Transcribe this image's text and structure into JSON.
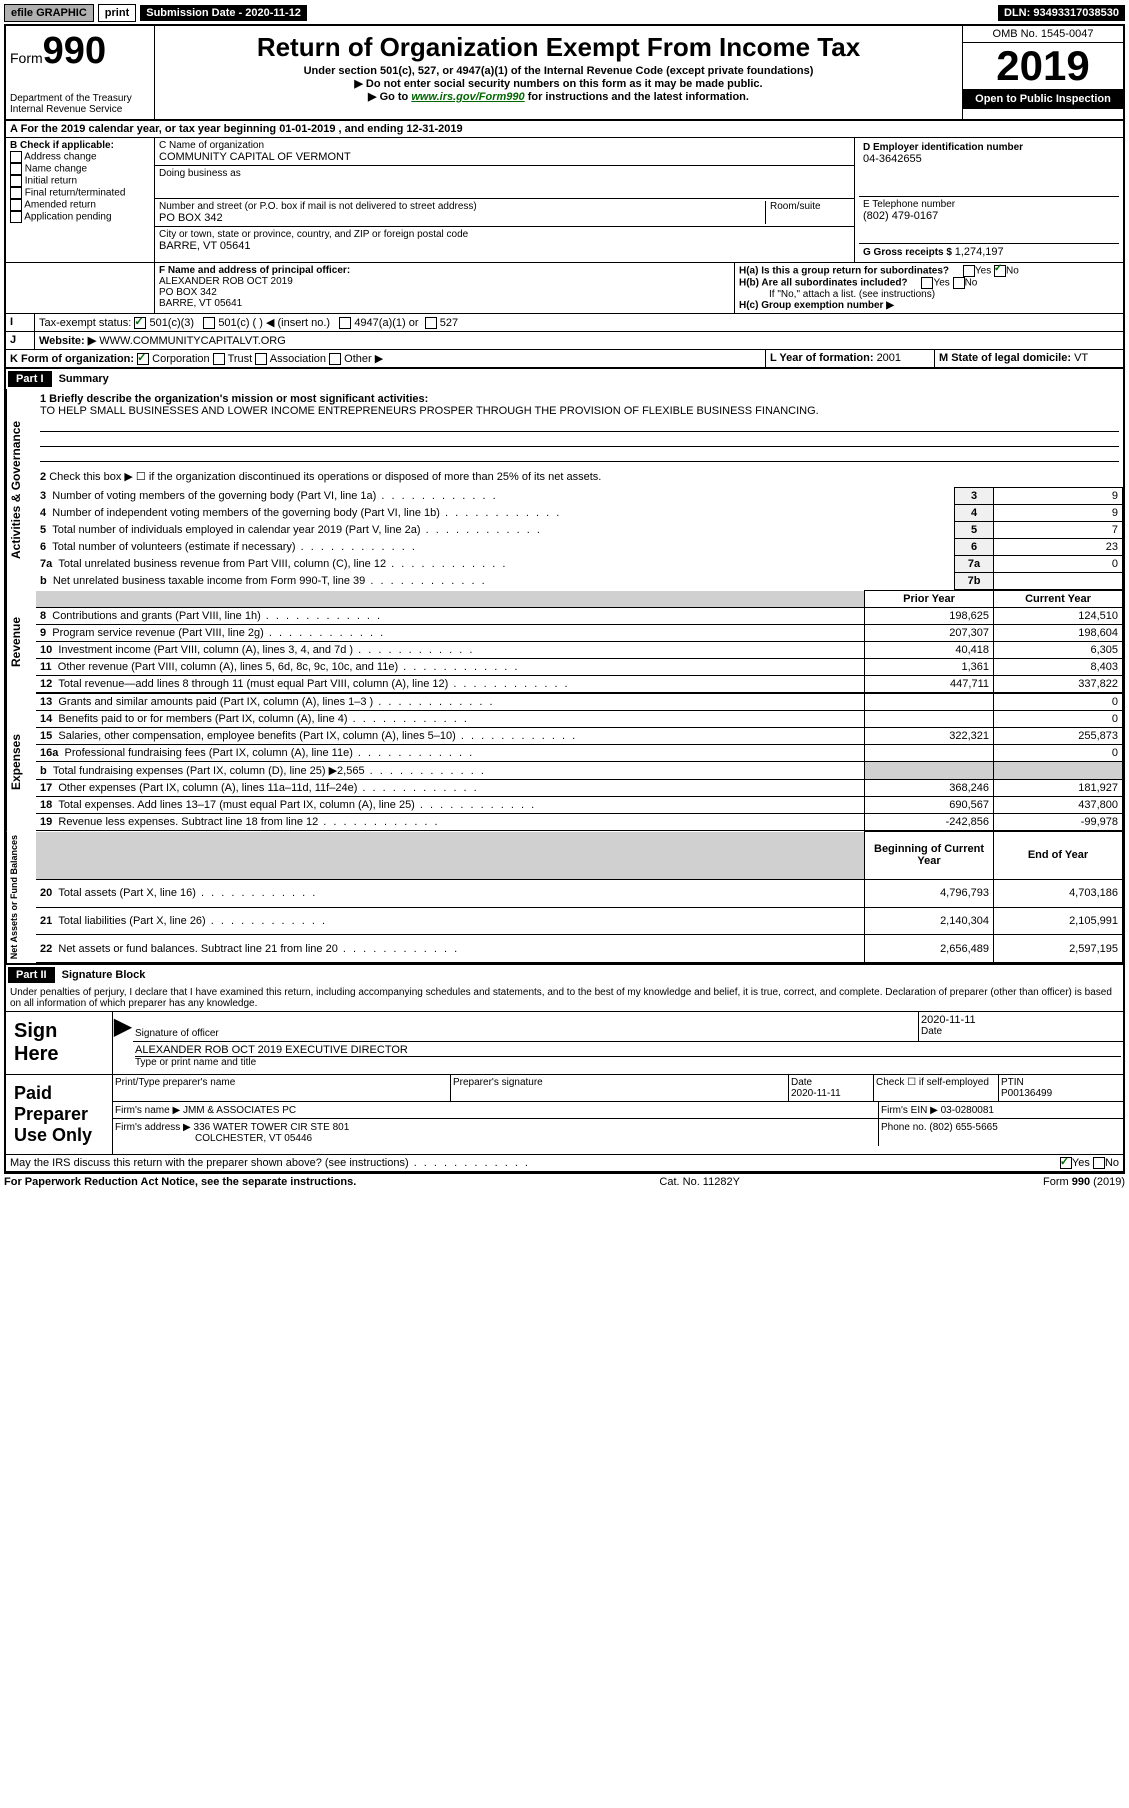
{
  "topbar": {
    "efile": "efile GRAPHIC",
    "print": "print",
    "subdate_label": "Submission Date - 2020-11-12",
    "dln": "DLN: 93493317038530"
  },
  "header": {
    "form_label": "Form",
    "form_num": "990",
    "dept": "Department of the Treasury",
    "irs": "Internal Revenue Service",
    "title": "Return of Organization Exempt From Income Tax",
    "subtitle": "Under section 501(c), 527, or 4947(a)(1) of the Internal Revenue Code (except private foundations)",
    "line1": "▶ Do not enter social security numbers on this form as it may be made public.",
    "line2_pre": "▶ Go to ",
    "line2_link": "www.irs.gov/Form990",
    "line2_post": " for instructions and the latest information.",
    "omb": "OMB No. 1545-0047",
    "year": "2019",
    "inspection": "Open to Public Inspection"
  },
  "A": {
    "text": "For the 2019 calendar year, or tax year beginning 01-01-2019   , and ending 12-31-2019"
  },
  "B": {
    "label": "B Check if applicable:",
    "opts": [
      "Address change",
      "Name change",
      "Initial return",
      "Final return/terminated",
      "Amended return",
      "Application pending"
    ]
  },
  "C": {
    "name_label": "C Name of organization",
    "name": "COMMUNITY CAPITAL OF VERMONT",
    "dba_label": "Doing business as",
    "addr_label": "Number and street (or P.O. box if mail is not delivered to street address)",
    "room_label": "Room/suite",
    "addr": "PO BOX 342",
    "city_label": "City or town, state or province, country, and ZIP or foreign postal code",
    "city": "BARRE, VT  05641"
  },
  "D": {
    "label": "D Employer identification number",
    "value": "04-3642655"
  },
  "E": {
    "label": "E Telephone number",
    "value": "(802) 479-0167"
  },
  "G": {
    "label": "G Gross receipts $ ",
    "value": "1,274,197"
  },
  "F": {
    "label": "F  Name and address of principal officer:",
    "name": "ALEXANDER ROB OCT 2019",
    "addr1": "PO BOX 342",
    "addr2": "BARRE, VT  05641"
  },
  "H": {
    "a_label": "H(a)  Is this a group return for subordinates?",
    "b_label": "H(b)  Are all subordinates included?",
    "b_note": "If \"No,\" attach a list. (see instructions)",
    "c_label": "H(c)  Group exemption number ▶",
    "yes": "Yes",
    "no": "No"
  },
  "I": {
    "label": "Tax-exempt status:",
    "opts": [
      "501(c)(3)",
      "501(c) (  ) ◀ (insert no.)",
      "4947(a)(1) or",
      "527"
    ]
  },
  "J": {
    "label": "Website: ▶",
    "value": "WWW.COMMUNITYCAPITALVT.ORG"
  },
  "K": {
    "label": "K Form of organization:",
    "opts": [
      "Corporation",
      "Trust",
      "Association",
      "Other ▶"
    ]
  },
  "L": {
    "label": "L Year of formation: ",
    "value": "2001"
  },
  "M": {
    "label": "M State of legal domicile: ",
    "value": "VT"
  },
  "part1": {
    "label": "Part I",
    "title": "Summary",
    "q1_label": "1  Briefly describe the organization's mission or most significant activities:",
    "q1_text": "TO HELP SMALL BUSINESSES AND LOWER INCOME ENTREPRENEURS PROSPER THROUGH THE PROVISION OF FLEXIBLE BUSINESS FINANCING.",
    "q2": "Check this box ▶ ☐ if the organization discontinued its operations or disposed of more than 25% of its net assets."
  },
  "sidebars": {
    "ag": "Activities & Governance",
    "rev": "Revenue",
    "exp": "Expenses",
    "na": "Net Assets or Fund Balances"
  },
  "gov_rows": [
    {
      "n": "3",
      "label": "Number of voting members of the governing body (Part VI, line 1a)",
      "box": "3",
      "val": "9"
    },
    {
      "n": "4",
      "label": "Number of independent voting members of the governing body (Part VI, line 1b)",
      "box": "4",
      "val": "9"
    },
    {
      "n": "5",
      "label": "Total number of individuals employed in calendar year 2019 (Part V, line 2a)",
      "box": "5",
      "val": "7"
    },
    {
      "n": "6",
      "label": "Total number of volunteers (estimate if necessary)",
      "box": "6",
      "val": "23"
    },
    {
      "n": "7a",
      "label": "Total unrelated business revenue from Part VIII, column (C), line 12",
      "box": "7a",
      "val": "0"
    },
    {
      "n": "b",
      "label": "Net unrelated business taxable income from Form 990-T, line 39",
      "box": "7b",
      "val": ""
    }
  ],
  "pycy_header": {
    "py": "Prior Year",
    "cy": "Current Year"
  },
  "rev_rows": [
    {
      "n": "8",
      "label": "Contributions and grants (Part VIII, line 1h)",
      "py": "198,625",
      "cy": "124,510"
    },
    {
      "n": "9",
      "label": "Program service revenue (Part VIII, line 2g)",
      "py": "207,307",
      "cy": "198,604"
    },
    {
      "n": "10",
      "label": "Investment income (Part VIII, column (A), lines 3, 4, and 7d )",
      "py": "40,418",
      "cy": "6,305"
    },
    {
      "n": "11",
      "label": "Other revenue (Part VIII, column (A), lines 5, 6d, 8c, 9c, 10c, and 11e)",
      "py": "1,361",
      "cy": "8,403"
    },
    {
      "n": "12",
      "label": "Total revenue—add lines 8 through 11 (must equal Part VIII, column (A), line 12)",
      "py": "447,711",
      "cy": "337,822"
    }
  ],
  "exp_rows": [
    {
      "n": "13",
      "label": "Grants and similar amounts paid (Part IX, column (A), lines 1–3 )",
      "py": "",
      "cy": "0"
    },
    {
      "n": "14",
      "label": "Benefits paid to or for members (Part IX, column (A), line 4)",
      "py": "",
      "cy": "0"
    },
    {
      "n": "15",
      "label": "Salaries, other compensation, employee benefits (Part IX, column (A), lines 5–10)",
      "py": "322,321",
      "cy": "255,873"
    },
    {
      "n": "16a",
      "label": "Professional fundraising fees (Part IX, column (A), line 11e)",
      "py": "",
      "cy": "0"
    },
    {
      "n": "b",
      "label": "Total fundraising expenses (Part IX, column (D), line 25) ▶2,565",
      "py": "shade",
      "cy": "shade"
    },
    {
      "n": "17",
      "label": "Other expenses (Part IX, column (A), lines 11a–11d, 11f–24e)",
      "py": "368,246",
      "cy": "181,927"
    },
    {
      "n": "18",
      "label": "Total expenses. Add lines 13–17 (must equal Part IX, column (A), line 25)",
      "py": "690,567",
      "cy": "437,800"
    },
    {
      "n": "19",
      "label": "Revenue less expenses. Subtract line 18 from line 12",
      "py": "-242,856",
      "cy": "-99,978"
    }
  ],
  "na_header": {
    "py": "Beginning of Current Year",
    "cy": "End of Year"
  },
  "na_rows": [
    {
      "n": "20",
      "label": "Total assets (Part X, line 16)",
      "py": "4,796,793",
      "cy": "4,703,186"
    },
    {
      "n": "21",
      "label": "Total liabilities (Part X, line 26)",
      "py": "2,140,304",
      "cy": "2,105,991"
    },
    {
      "n": "22",
      "label": "Net assets or fund balances. Subtract line 21 from line 20",
      "py": "2,656,489",
      "cy": "2,597,195"
    }
  ],
  "part2": {
    "label": "Part II",
    "title": "Signature Block",
    "decl": "Under penalties of perjury, I declare that I have examined this return, including accompanying schedules and statements, and to the best of my knowledge and belief, it is true, correct, and complete. Declaration of preparer (other than officer) is based on all information of which preparer has any knowledge."
  },
  "sign": {
    "here": "Sign Here",
    "sig_label": "Signature of officer",
    "date_label": "Date",
    "date_val": "2020-11-11",
    "name": "ALEXANDER ROB OCT 2019  EXECUTIVE DIRECTOR",
    "name_label": "Type or print name and title"
  },
  "paid": {
    "label": "Paid Preparer Use Only",
    "prep_name_label": "Print/Type preparer's name",
    "prep_sig_label": "Preparer's signature",
    "date_label": "Date",
    "date_val": "2020-11-11",
    "check_label": "Check ☐ if self-employed",
    "ptin_label": "PTIN",
    "ptin_val": "P00136499",
    "firm_name_label": "Firm's name    ▶ ",
    "firm_name": "JMM & ASSOCIATES PC",
    "firm_ein_label": "Firm's EIN ▶ ",
    "firm_ein": "03-0280081",
    "firm_addr_label": "Firm's address ▶ ",
    "firm_addr1": "336 WATER TOWER CIR STE 801",
    "firm_addr2": "COLCHESTER, VT  05446",
    "phone_label": "Phone no. ",
    "phone": "(802) 655-5665",
    "discuss": "May the IRS discuss this return with the preparer shown above? (see instructions)",
    "yes": "Yes",
    "no": "No"
  },
  "footer": {
    "left": "For Paperwork Reduction Act Notice, see the separate instructions.",
    "mid": "Cat. No. 11282Y",
    "right": "Form 990 (2019)"
  }
}
